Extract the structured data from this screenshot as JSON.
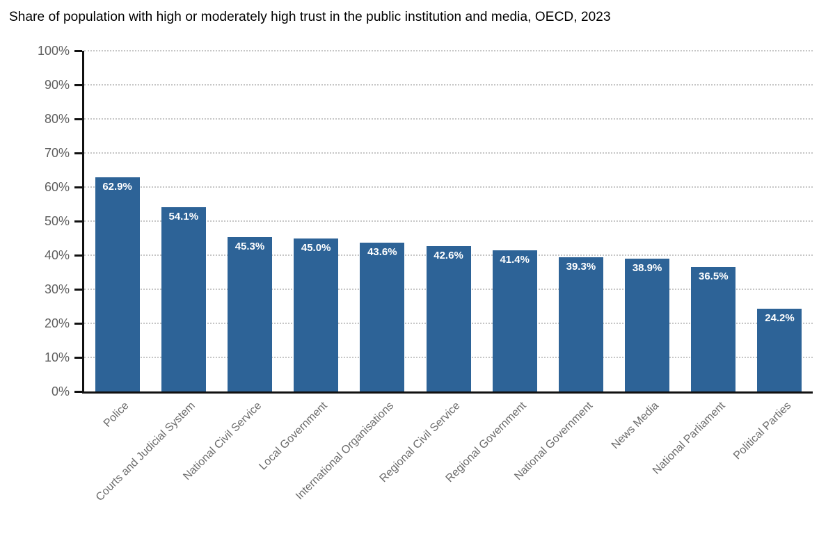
{
  "title": "Share of population with high or moderately high trust in the public institution and media, OECD, 2023",
  "chart_data": {
    "type": "bar",
    "title": "Share of population with high or moderately high trust in the public institution and media, OECD, 2023",
    "categories": [
      "Police",
      "Courts and Judicial System",
      "National Civil Service",
      "Local Government",
      "International Organisations",
      "Regional Civil Service",
      "Regional Government",
      "National Government",
      "News Media",
      "National Parliament",
      "Political Parties"
    ],
    "values": [
      62.9,
      54.1,
      45.3,
      45.0,
      43.6,
      42.6,
      41.4,
      39.3,
      38.9,
      36.5,
      24.2
    ],
    "value_labels": [
      "62.9%",
      "54.1%",
      "45.3%",
      "45.0%",
      "43.6%",
      "42.6%",
      "41.4%",
      "39.3%",
      "38.9%",
      "36.5%",
      "24.2%"
    ],
    "xlabel": "",
    "ylabel": "",
    "ylim": [
      0,
      100
    ],
    "yticks": [
      0,
      10,
      20,
      30,
      40,
      50,
      60,
      70,
      80,
      90,
      100
    ],
    "ytick_labels": [
      "0%",
      "10%",
      "20%",
      "30%",
      "40%",
      "50%",
      "60%",
      "70%",
      "80%",
      "90%",
      "100%"
    ],
    "grid": "horizontal-dotted",
    "legend": "none",
    "colors": {
      "bar": "#2d6397",
      "value_label": "#ffffff",
      "axis": "#111111",
      "gridline": "#c6c6c6",
      "ytick_label": "#5f5f5f",
      "xtick_label": "#6b6b6b",
      "title": "#000000"
    }
  }
}
